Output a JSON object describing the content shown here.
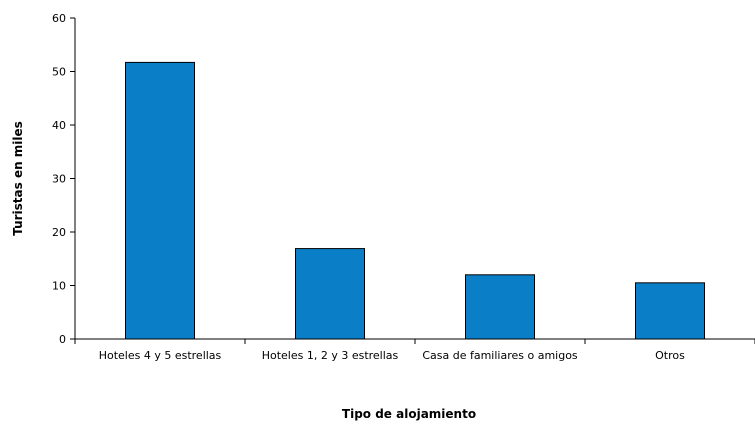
{
  "chart_data": {
    "type": "bar",
    "categories": [
      "Hoteles 4 y 5 estrellas",
      "Hoteles 1, 2 y 3 estrellas",
      "Casa de familiares o amigos",
      "Otros"
    ],
    "values": [
      51.7,
      16.9,
      12.0,
      10.5
    ],
    "title": "",
    "xlabel": "Tipo de alojamiento",
    "ylabel": "Turistas en miles",
    "ylim": [
      0,
      60
    ],
    "yticks": [
      0,
      10,
      20,
      30,
      40,
      50,
      60
    ],
    "grid": false,
    "legend": "none",
    "bar_color": "#0a7fc7"
  }
}
